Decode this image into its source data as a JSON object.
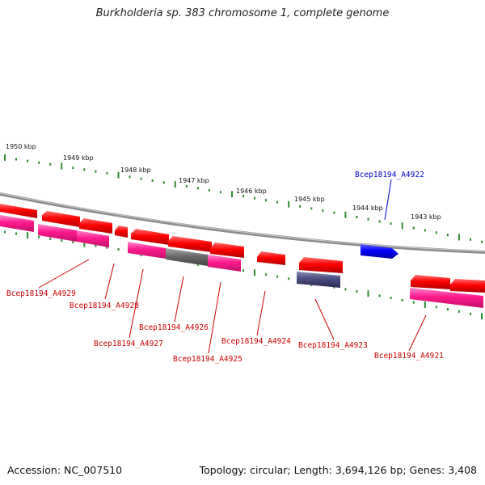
{
  "title": "Burkholderia sp. 383 chromosome 1, complete genome",
  "footer": {
    "accession": "Accession: NC_007510",
    "summary": "Topology: circular; Length: 3,694,126 bp; Genes: 3,408"
  },
  "colors": {
    "backbone": "#8c8c8c",
    "tick": "#2e8b2e",
    "cds": "#ff0000",
    "gene": "#ff3399",
    "blue_gene": "#0000ff",
    "dark_gene": "#555580",
    "gray_gene": "#707070",
    "label_red": "#cc0000",
    "label_blue": "#0000cc"
  },
  "kbp_labels": [
    "1950 kbp",
    "1949 kbp",
    "1948 kbp",
    "1947 kbp",
    "1946 kbp",
    "1945 kbp",
    "1944 kbp",
    "1943 kbp"
  ],
  "gene_labels": [
    "Bcep18194_A4929",
    "Bcep18194_A4928",
    "Bcep18194_A4927",
    "Bcep18194_A4926",
    "Bcep18194_A4925",
    "Bcep18194_A4924",
    "Bcep18194_A4923",
    "Bcep18194_A4922",
    "Bcep18194_A4921"
  ]
}
